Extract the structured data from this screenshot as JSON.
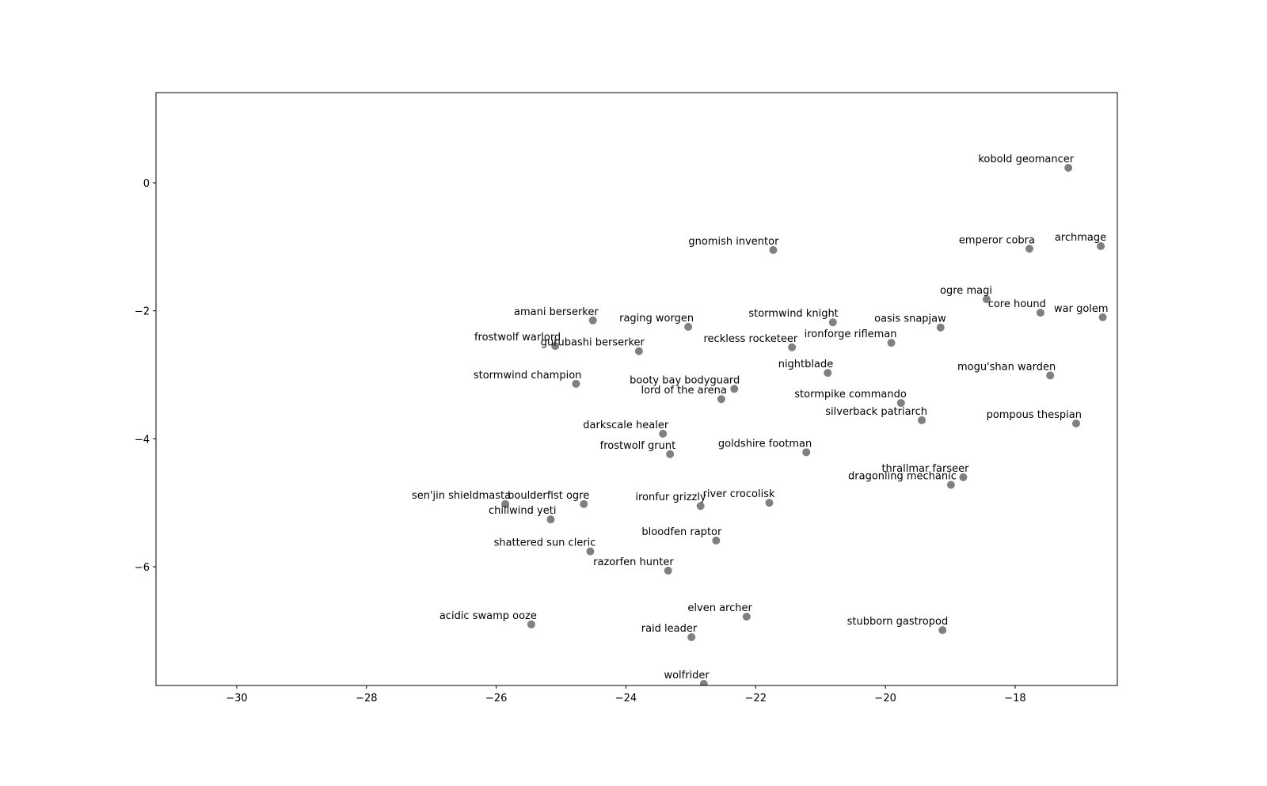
{
  "chart_data": {
    "type": "scatter",
    "color": "#808080",
    "xlim": [
      -31.245,
      -16.425
    ],
    "ylim": [
      -7.855,
      1.41
    ],
    "xticks": [
      {
        "value": -30,
        "label": "−30"
      },
      {
        "value": -28,
        "label": "−28"
      },
      {
        "value": -26,
        "label": "−26"
      },
      {
        "value": -24,
        "label": "−24"
      },
      {
        "value": -22,
        "label": "−22"
      },
      {
        "value": -20,
        "label": "−20"
      },
      {
        "value": -18,
        "label": "−18"
      }
    ],
    "yticks": [
      0,
      {
        "value": -2,
        "label": "−2"
      },
      {
        "value": -4,
        "label": "−4"
      },
      {
        "value": -6,
        "label": "−6"
      }
    ],
    "points": [
      {
        "label": "kobold geomancer",
        "x": -17.18,
        "y": 0.235
      },
      {
        "label": "gnomish inventor",
        "x": -21.73,
        "y": -1.05
      },
      {
        "label": "emperor cobra",
        "x": -17.78,
        "y": -1.03
      },
      {
        "label": "archmage",
        "x": -16.68,
        "y": -0.99
      },
      {
        "label": "ogre magi",
        "x": -18.44,
        "y": -1.82
      },
      {
        "label": "core hound",
        "x": -17.61,
        "y": -2.03
      },
      {
        "label": "war golem",
        "x": -16.65,
        "y": -2.1
      },
      {
        "label": "oasis snapjaw",
        "x": -19.15,
        "y": -2.26
      },
      {
        "label": "amani berserker",
        "x": -24.51,
        "y": -2.15
      },
      {
        "label": "raging worgen",
        "x": -23.04,
        "y": -2.25
      },
      {
        "label": "stormwind knight",
        "x": -20.81,
        "y": -2.18
      },
      {
        "label": "frostwolf warlord",
        "x": -25.09,
        "y": -2.55
      },
      {
        "label": "gurubashi berserker",
        "x": -23.8,
        "y": -2.63
      },
      {
        "label": "reckless rocketeer",
        "x": -21.44,
        "y": -2.57
      },
      {
        "label": "ironforge rifleman",
        "x": -19.91,
        "y": -2.5
      },
      {
        "label": "nightblade",
        "x": -20.89,
        "y": -2.97
      },
      {
        "label": "mogu'shan warden",
        "x": -17.46,
        "y": -3.01
      },
      {
        "label": "stormwind champion",
        "x": -24.77,
        "y": -3.14
      },
      {
        "label": "booty bay bodyguard",
        "x": -22.33,
        "y": -3.22
      },
      {
        "label": "lord of the arena",
        "x": -22.53,
        "y": -3.38
      },
      {
        "label": "stormpike commando",
        "x": -19.76,
        "y": -3.44
      },
      {
        "label": "silverback patriarch",
        "x": -19.44,
        "y": -3.71
      },
      {
        "label": "pompous thespian",
        "x": -17.06,
        "y": -3.76
      },
      {
        "label": "darkscale healer",
        "x": -23.43,
        "y": -3.92
      },
      {
        "label": "frostwolf grunt",
        "x": -23.32,
        "y": -4.24
      },
      {
        "label": "goldshire footman",
        "x": -21.22,
        "y": -4.21
      },
      {
        "label": "thrallmar farseer",
        "x": -18.8,
        "y": -4.6
      },
      {
        "label": "dragonling mechanic",
        "x": -18.99,
        "y": -4.72
      },
      {
        "label": "sen'jin shieldmasta",
        "x": -25.86,
        "y": -5.02
      },
      {
        "label": "boulderfist ogre",
        "x": -24.65,
        "y": -5.02
      },
      {
        "label": "chillwind yeti",
        "x": -25.16,
        "y": -5.26
      },
      {
        "label": "ironfur grizzly",
        "x": -22.85,
        "y": -5.05
      },
      {
        "label": "river crocolisk",
        "x": -21.79,
        "y": -5.0
      },
      {
        "label": "bloodfen raptor",
        "x": -22.61,
        "y": -5.59
      },
      {
        "label": "shattered sun cleric",
        "x": -24.55,
        "y": -5.76
      },
      {
        "label": "razorfen hunter",
        "x": -23.35,
        "y": -6.06
      },
      {
        "label": "acidic swamp ooze",
        "x": -25.46,
        "y": -6.9
      },
      {
        "label": "elven archer",
        "x": -22.14,
        "y": -6.78
      },
      {
        "label": "raid leader",
        "x": -22.99,
        "y": -7.1
      },
      {
        "label": "stubborn gastropod",
        "x": -19.12,
        "y": -6.99
      },
      {
        "label": "wolfrider",
        "x": -22.8,
        "y": -7.83
      }
    ]
  }
}
